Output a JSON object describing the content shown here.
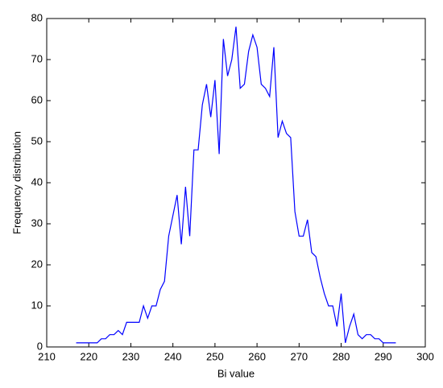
{
  "chart_data": {
    "type": "line",
    "x_label": "Bi value",
    "y_label": "Frequency distribution",
    "x": [
      217,
      218,
      219,
      220,
      221,
      222,
      223,
      224,
      225,
      226,
      227,
      228,
      229,
      230,
      231,
      232,
      233,
      234,
      235,
      236,
      237,
      238,
      239,
      240,
      241,
      242,
      243,
      244,
      245,
      246,
      247,
      248,
      249,
      250,
      251,
      252,
      253,
      254,
      255,
      256,
      257,
      258,
      259,
      260,
      261,
      262,
      263,
      264,
      265,
      266,
      267,
      268,
      269,
      270,
      271,
      272,
      273,
      274,
      275,
      276,
      277,
      278,
      279,
      280,
      281,
      282,
      283,
      284,
      285,
      286,
      287,
      288,
      289,
      290,
      291,
      292,
      293
    ],
    "series": [
      {
        "color": "#0000ff",
        "values": [
          1,
          1,
          1,
          1,
          1,
          1,
          2,
          2,
          3,
          3,
          4,
          3,
          6,
          6,
          6,
          6,
          10,
          7,
          10,
          10,
          14,
          16,
          27,
          32,
          37,
          25,
          39,
          27,
          48,
          48,
          59,
          64,
          56,
          65,
          47,
          75,
          66,
          70,
          78,
          63,
          64,
          72,
          76,
          73,
          64,
          63,
          61,
          73,
          51,
          55,
          52,
          51,
          33,
          27,
          27,
          31,
          23,
          22,
          17,
          13,
          10,
          10,
          5,
          13,
          1,
          5,
          8,
          3,
          2,
          3,
          3,
          2,
          2,
          1,
          1,
          1,
          1
        ]
      }
    ],
    "xlim": [
      210,
      300
    ],
    "xticks": [
      210,
      220,
      230,
      240,
      250,
      260,
      270,
      280,
      290,
      300
    ],
    "ylim": [
      0,
      80
    ],
    "yticks": [
      0,
      10,
      20,
      30,
      40,
      50,
      60,
      70,
      80
    ]
  }
}
